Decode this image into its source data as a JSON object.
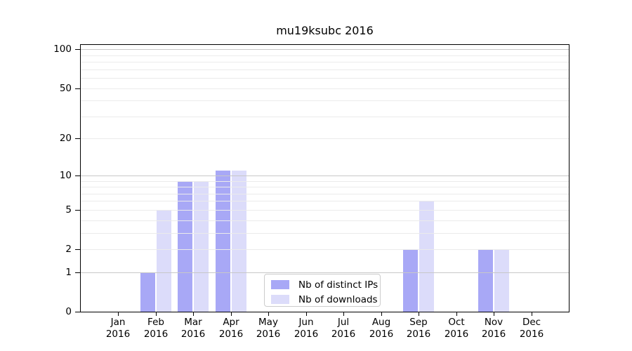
{
  "chart_data": {
    "type": "bar",
    "title": "mu19ksubc 2016",
    "categories": [
      {
        "line1": "Jan",
        "line2": "2016"
      },
      {
        "line1": "Feb",
        "line2": "2016"
      },
      {
        "line1": "Mar",
        "line2": "2016"
      },
      {
        "line1": "Apr",
        "line2": "2016"
      },
      {
        "line1": "May",
        "line2": "2016"
      },
      {
        "line1": "Jun",
        "line2": "2016"
      },
      {
        "line1": "Jul",
        "line2": "2016"
      },
      {
        "line1": "Aug",
        "line2": "2016"
      },
      {
        "line1": "Sep",
        "line2": "2016"
      },
      {
        "line1": "Oct",
        "line2": "2016"
      },
      {
        "line1": "Nov",
        "line2": "2016"
      },
      {
        "line1": "Dec",
        "line2": "2016"
      }
    ],
    "series": [
      {
        "name": "Nb of distinct IPs",
        "color": "#a8a8f6",
        "values": [
          0,
          1,
          9,
          11,
          0,
          0,
          0,
          0,
          2,
          0,
          2,
          0
        ]
      },
      {
        "name": "Nb of downloads",
        "color": "#dcdcfa",
        "values": [
          0,
          5,
          9,
          11,
          0,
          0,
          0,
          0,
          6,
          0,
          2,
          0
        ]
      }
    ],
    "yscale": "log1p",
    "ylim": [
      0,
      110
    ],
    "yticks": [
      0,
      1,
      2,
      5,
      10,
      20,
      50,
      100
    ],
    "major_gridlines": [
      1,
      10,
      100
    ],
    "minor_gridlines": [
      2,
      3,
      4,
      5,
      6,
      7,
      8,
      9,
      20,
      30,
      40,
      50,
      60,
      70,
      80,
      90
    ],
    "grid": true,
    "legend_position": "lower center",
    "colors": {
      "grid_major": "#c8c8c8",
      "grid_minor": "#ebebeb",
      "spine": "#000000",
      "background": "#ffffff",
      "text": "#000000",
      "legend_border": "#cccccc"
    }
  }
}
